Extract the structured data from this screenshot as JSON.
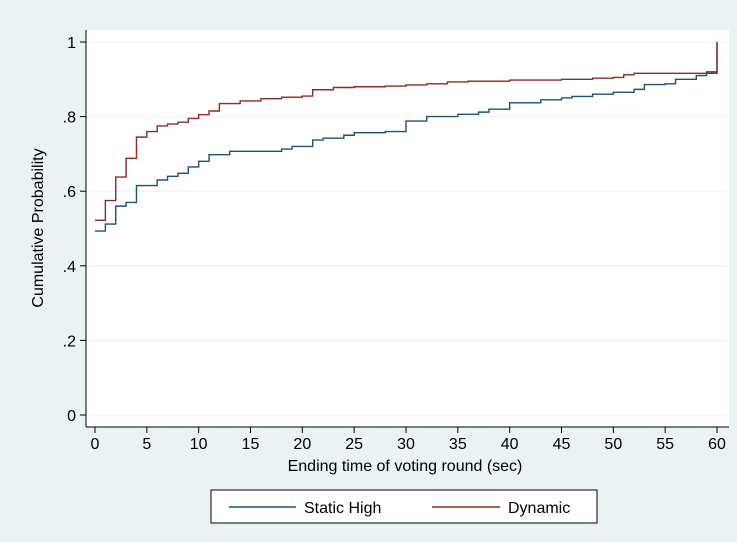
{
  "chart_data": {
    "type": "line",
    "step": true,
    "xlabel": "Ending time of voting round (sec)",
    "ylabel": "Cumulative Probability",
    "xlim": [
      0,
      60
    ],
    "ylim": [
      0,
      1
    ],
    "x_ticks": [
      0,
      5,
      10,
      15,
      20,
      25,
      30,
      35,
      40,
      45,
      50,
      55,
      60
    ],
    "x_tick_labels": [
      "0",
      "5",
      "10",
      "15",
      "20",
      "25",
      "30",
      "35",
      "40",
      "45",
      "50",
      "55",
      "60"
    ],
    "y_ticks": [
      0,
      0.2,
      0.4,
      0.6,
      0.8,
      1
    ],
    "y_tick_labels": [
      "0",
      ".2",
      ".4",
      ".6",
      ".8",
      "1"
    ],
    "grid": "horizontal",
    "legend_position": "bottom",
    "series": [
      {
        "name": "Static High",
        "color": "#1f4e79",
        "points": [
          [
            0,
            0.493
          ],
          [
            1,
            0.512
          ],
          [
            2,
            0.56
          ],
          [
            3,
            0.57
          ],
          [
            4,
            0.615
          ],
          [
            6,
            0.63
          ],
          [
            7,
            0.64
          ],
          [
            8,
            0.648
          ],
          [
            9,
            0.665
          ],
          [
            10,
            0.68
          ],
          [
            11,
            0.698
          ],
          [
            13,
            0.707
          ],
          [
            18,
            0.713
          ],
          [
            19,
            0.72
          ],
          [
            21,
            0.737
          ],
          [
            22,
            0.742
          ],
          [
            24,
            0.75
          ],
          [
            25,
            0.757
          ],
          [
            28,
            0.76
          ],
          [
            30,
            0.788
          ],
          [
            32,
            0.8
          ],
          [
            35,
            0.806
          ],
          [
            37,
            0.812
          ],
          [
            38,
            0.82
          ],
          [
            40,
            0.837
          ],
          [
            43,
            0.845
          ],
          [
            45,
            0.85
          ],
          [
            46,
            0.854
          ],
          [
            48,
            0.86
          ],
          [
            50,
            0.865
          ],
          [
            52,
            0.873
          ],
          [
            53,
            0.886
          ],
          [
            55,
            0.888
          ],
          [
            56,
            0.9
          ],
          [
            58,
            0.91
          ],
          [
            59,
            0.92
          ],
          [
            60,
            1.0
          ]
        ]
      },
      {
        "name": "Dynamic",
        "color": "#8b2a2a",
        "points": [
          [
            0,
            0.522
          ],
          [
            1,
            0.575
          ],
          [
            2,
            0.638
          ],
          [
            3,
            0.688
          ],
          [
            4,
            0.745
          ],
          [
            5,
            0.76
          ],
          [
            6,
            0.775
          ],
          [
            7,
            0.78
          ],
          [
            8,
            0.785
          ],
          [
            9,
            0.795
          ],
          [
            10,
            0.805
          ],
          [
            11,
            0.815
          ],
          [
            12,
            0.835
          ],
          [
            14,
            0.842
          ],
          [
            16,
            0.848
          ],
          [
            18,
            0.852
          ],
          [
            20,
            0.855
          ],
          [
            21,
            0.872
          ],
          [
            23,
            0.878
          ],
          [
            25,
            0.88
          ],
          [
            28,
            0.882
          ],
          [
            30,
            0.885
          ],
          [
            32,
            0.888
          ],
          [
            34,
            0.893
          ],
          [
            36,
            0.895
          ],
          [
            40,
            0.898
          ],
          [
            45,
            0.9
          ],
          [
            48,
            0.903
          ],
          [
            50,
            0.905
          ],
          [
            51,
            0.912
          ],
          [
            52,
            0.916
          ],
          [
            60,
            1.0
          ]
        ]
      }
    ]
  }
}
